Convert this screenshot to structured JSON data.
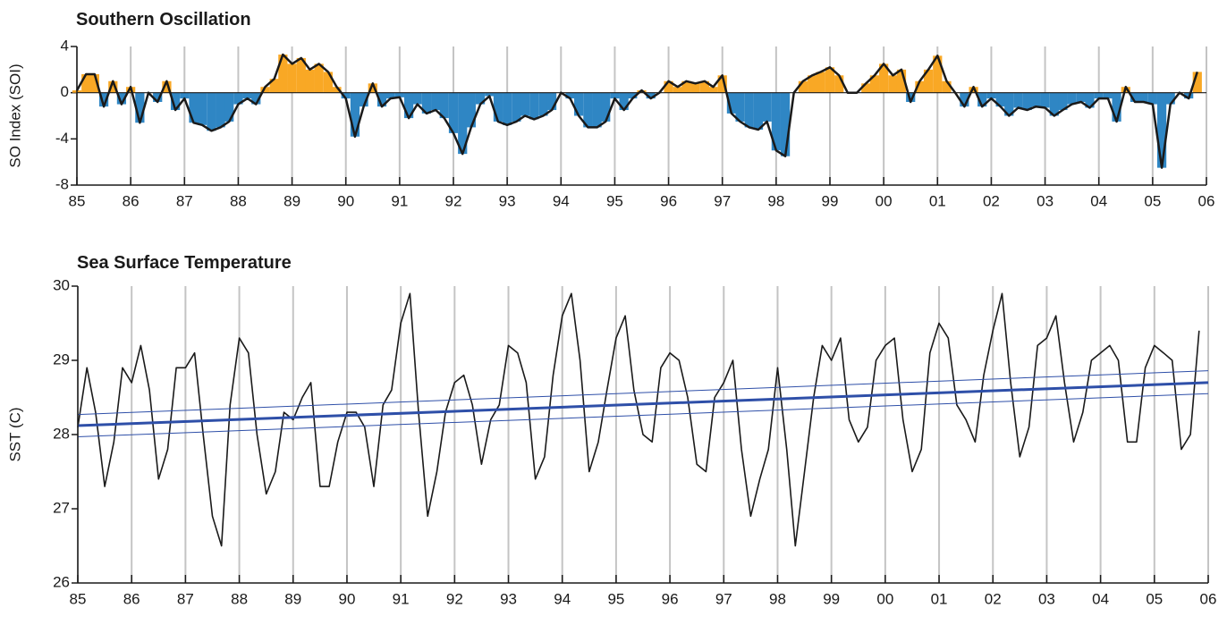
{
  "chart_data": [
    {
      "type": "area",
      "title": "Southern Oscillation",
      "ylabel": "SO Index (SOI)",
      "xlim": [
        1985,
        2006
      ],
      "ylim": [
        -8,
        4
      ],
      "yticks": [
        -8,
        -4,
        0,
        4
      ],
      "grid": true,
      "xticks": [
        {
          "value": 1985,
          "label": "85"
        },
        {
          "value": 1986,
          "label": "86"
        },
        {
          "value": 1987,
          "label": "87"
        },
        {
          "value": 1988,
          "label": "88"
        },
        {
          "value": 1989,
          "label": "89"
        },
        {
          "value": 1990,
          "label": "90"
        },
        {
          "value": 1991,
          "label": "91"
        },
        {
          "value": 1992,
          "label": "92"
        },
        {
          "value": 1993,
          "label": "93"
        },
        {
          "value": 1994,
          "label": "94"
        },
        {
          "value": 1995,
          "label": "95"
        },
        {
          "value": 1996,
          "label": "96"
        },
        {
          "value": 1997,
          "label": "97"
        },
        {
          "value": 1998,
          "label": "98"
        },
        {
          "value": 1999,
          "label": "99"
        },
        {
          "value": 2000,
          "label": "00"
        },
        {
          "value": 2001,
          "label": "01"
        },
        {
          "value": 2002,
          "label": "02"
        },
        {
          "value": 2003,
          "label": "03"
        },
        {
          "value": 2004,
          "label": "04"
        },
        {
          "value": 2005,
          "label": "05"
        },
        {
          "value": 2006,
          "label": "06"
        }
      ],
      "fill_colors": {
        "positive": "#f9a825",
        "negative": "#2f86c4"
      },
      "x": [
        1985,
        1985.17,
        1985.33,
        1985.5,
        1985.67,
        1985.83,
        1986,
        1986.17,
        1986.33,
        1986.5,
        1986.67,
        1986.83,
        1987,
        1987.17,
        1987.33,
        1987.5,
        1987.67,
        1987.83,
        1988,
        1988.17,
        1988.33,
        1988.5,
        1988.67,
        1988.83,
        1989,
        1989.17,
        1989.33,
        1989.5,
        1989.67,
        1989.83,
        1990,
        1990.17,
        1990.33,
        1990.5,
        1990.67,
        1990.83,
        1991,
        1991.17,
        1991.33,
        1991.5,
        1991.67,
        1991.83,
        1992,
        1992.17,
        1992.33,
        1992.5,
        1992.67,
        1992.83,
        1993,
        1993.17,
        1993.33,
        1993.5,
        1993.67,
        1993.83,
        1994,
        1994.17,
        1994.33,
        1994.5,
        1994.67,
        1994.83,
        1995,
        1995.17,
        1995.33,
        1995.5,
        1995.67,
        1995.83,
        1996,
        1996.17,
        1996.33,
        1996.5,
        1996.67,
        1996.83,
        1997,
        1997.17,
        1997.33,
        1997.5,
        1997.67,
        1997.83,
        1998,
        1998.17,
        1998.33,
        1998.5,
        1998.67,
        1998.83,
        1999,
        1999.17,
        1999.33,
        1999.5,
        1999.67,
        1999.83,
        2000,
        2000.17,
        2000.33,
        2000.5,
        2000.67,
        2000.83,
        2001,
        2001.17,
        2001.33,
        2001.5,
        2001.67,
        2001.83,
        2002,
        2002.17,
        2002.33,
        2002.5,
        2002.67,
        2002.83,
        2003,
        2003.17,
        2003.33,
        2003.5,
        2003.67,
        2003.83,
        2004,
        2004.17,
        2004.33,
        2004.5,
        2004.67,
        2004.83,
        2005,
        2005.17,
        2005.33,
        2005.5,
        2005.67,
        2005.83
      ],
      "series": [
        {
          "color": "#1a1a1a",
          "values": [
            0.2,
            1.6,
            1.6,
            -1.2,
            1.0,
            -1.0,
            0.5,
            -2.6,
            0,
            -0.8,
            1.0,
            -1.5,
            -0.5,
            -2.6,
            -2.8,
            -3.3,
            -3.0,
            -2.5,
            -1.0,
            -0.5,
            -1.0,
            0.5,
            1.2,
            3.3,
            2.5,
            3.0,
            2.0,
            2.5,
            1.8,
            0.5,
            -0.5,
            -3.8,
            -1.2,
            0.8,
            -1.2,
            -0.5,
            -0.4,
            -2.2,
            -1.0,
            -1.8,
            -1.5,
            -2.2,
            -3.5,
            -5.3,
            -3.0,
            -1.0,
            -0.3,
            -2.5,
            -2.8,
            -2.5,
            -2.0,
            -2.3,
            -2.0,
            -1.5,
            0,
            -0.5,
            -2.0,
            -3.0,
            -3.0,
            -2.5,
            -0.5,
            -1.5,
            -0.5,
            0.2,
            -0.5,
            0,
            1.0,
            0.5,
            1.0,
            0.8,
            1.0,
            0.5,
            1.5,
            -1.8,
            -2.5,
            -3.0,
            -3.2,
            -2.5,
            -5.0,
            -5.5,
            0,
            1.0,
            1.5,
            1.8,
            2.2,
            1.5,
            0,
            0,
            0.8,
            1.5,
            2.5,
            1.5,
            2.0,
            -0.8,
            1.0,
            2.0,
            3.2,
            1.0,
            0,
            -1.2,
            0.5,
            -1.2,
            -0.5,
            -1.2,
            -2.0,
            -1.3,
            -1.5,
            -1.2,
            -1.3,
            -2.0,
            -1.5,
            -1.0,
            -0.8,
            -1.3,
            -0.5,
            -0.5,
            -2.5,
            0.5,
            -0.8,
            -0.8,
            -1.0,
            -6.5,
            -1.0,
            0,
            -0.5,
            1.8
          ]
        }
      ]
    },
    {
      "type": "line",
      "title": "Sea Surface Temperature",
      "ylabel": "SST (C)",
      "xlim": [
        1985,
        2006
      ],
      "ylim": [
        26,
        30
      ],
      "yticks": [
        26,
        27,
        28,
        29,
        30
      ],
      "grid": true,
      "xticks": [
        {
          "value": 1985,
          "label": "85"
        },
        {
          "value": 1986,
          "label": "86"
        },
        {
          "value": 1987,
          "label": "87"
        },
        {
          "value": 1988,
          "label": "88"
        },
        {
          "value": 1989,
          "label": "89"
        },
        {
          "value": 1990,
          "label": "90"
        },
        {
          "value": 1991,
          "label": "91"
        },
        {
          "value": 1992,
          "label": "92"
        },
        {
          "value": 1993,
          "label": "93"
        },
        {
          "value": 1994,
          "label": "94"
        },
        {
          "value": 1995,
          "label": "95"
        },
        {
          "value": 1996,
          "label": "96"
        },
        {
          "value": 1997,
          "label": "97"
        },
        {
          "value": 1998,
          "label": "98"
        },
        {
          "value": 1999,
          "label": "99"
        },
        {
          "value": 2000,
          "label": "00"
        },
        {
          "value": 2001,
          "label": "01"
        },
        {
          "value": 2002,
          "label": "02"
        },
        {
          "value": 2003,
          "label": "03"
        },
        {
          "value": 2004,
          "label": "04"
        },
        {
          "value": 2005,
          "label": "05"
        },
        {
          "value": 2006,
          "label": "06"
        }
      ],
      "x": [
        1985,
        1985.17,
        1985.33,
        1985.5,
        1985.67,
        1985.83,
        1986,
        1986.17,
        1986.33,
        1986.5,
        1986.67,
        1986.83,
        1987,
        1987.17,
        1987.33,
        1987.5,
        1987.67,
        1987.83,
        1988,
        1988.17,
        1988.33,
        1988.5,
        1988.67,
        1988.83,
        1989,
        1989.17,
        1989.33,
        1989.5,
        1989.67,
        1989.83,
        1990,
        1990.17,
        1990.33,
        1990.5,
        1990.67,
        1990.83,
        1991,
        1991.17,
        1991.33,
        1991.5,
        1991.67,
        1991.83,
        1992,
        1992.17,
        1992.33,
        1992.5,
        1992.67,
        1992.83,
        1993,
        1993.17,
        1993.33,
        1993.5,
        1993.67,
        1993.83,
        1994,
        1994.17,
        1994.33,
        1994.5,
        1994.67,
        1994.83,
        1995,
        1995.17,
        1995.33,
        1995.5,
        1995.67,
        1995.83,
        1996,
        1996.17,
        1996.33,
        1996.5,
        1996.67,
        1996.83,
        1997,
        1997.17,
        1997.33,
        1997.5,
        1997.67,
        1997.83,
        1998,
        1998.17,
        1998.33,
        1998.5,
        1998.67,
        1998.83,
        1999,
        1999.17,
        1999.33,
        1999.5,
        1999.67,
        1999.83,
        2000,
        2000.17,
        2000.33,
        2000.5,
        2000.67,
        2000.83,
        2001,
        2001.17,
        2001.33,
        2001.5,
        2001.67,
        2001.83,
        2002,
        2002.17,
        2002.33,
        2002.5,
        2002.67,
        2002.83,
        2003,
        2003.17,
        2003.33,
        2003.5,
        2003.67,
        2003.83,
        2004,
        2004.17,
        2004.33,
        2004.5,
        2004.67,
        2004.83,
        2005,
        2005.17,
        2005.33,
        2005.5,
        2005.67,
        2005.83
      ],
      "series": [
        {
          "color": "#1a1a1a",
          "values": [
            28.1,
            28.9,
            28.3,
            27.3,
            27.9,
            28.9,
            28.7,
            29.2,
            28.6,
            27.4,
            27.8,
            28.9,
            28.9,
            29.1,
            28.0,
            26.9,
            26.5,
            28.4,
            29.3,
            29.1,
            28.0,
            27.2,
            27.5,
            28.3,
            28.2,
            28.5,
            28.7,
            27.3,
            27.3,
            27.9,
            28.3,
            28.3,
            28.1,
            27.3,
            28.4,
            28.6,
            29.5,
            29.9,
            28.3,
            26.9,
            27.5,
            28.3,
            28.7,
            28.8,
            28.4,
            27.6,
            28.2,
            28.4,
            29.2,
            29.1,
            28.7,
            27.4,
            27.7,
            28.8,
            29.6,
            29.9,
            29.0,
            27.5,
            27.9,
            28.6,
            29.3,
            29.6,
            28.6,
            28.0,
            27.9,
            28.9,
            29.1,
            29.0,
            28.5,
            27.6,
            27.5,
            28.5,
            28.7,
            29.0,
            27.8,
            26.9,
            27.4,
            27.8,
            28.9,
            27.8,
            26.5,
            27.5,
            28.5,
            29.2,
            29.0,
            29.3,
            28.2,
            27.9,
            28.1,
            29.0,
            29.2,
            29.3,
            28.2,
            27.5,
            27.8,
            29.1,
            29.5,
            29.3,
            28.4,
            28.2,
            27.9,
            28.8,
            29.4,
            29.9,
            28.7,
            27.7,
            28.1,
            29.2,
            29.3,
            29.6,
            28.7,
            27.9,
            28.3,
            29.0,
            29.1,
            29.2,
            29.0,
            27.9,
            27.9,
            28.9,
            29.2,
            29.1,
            29.0,
            27.8,
            28.0,
            29.4
          ]
        }
      ],
      "trend": {
        "color": "#2e4fa8",
        "x": [
          1985,
          2006
        ],
        "center": [
          28.12,
          28.7
        ],
        "upper": [
          28.27,
          28.86
        ],
        "lower": [
          27.97,
          28.55
        ]
      }
    }
  ]
}
